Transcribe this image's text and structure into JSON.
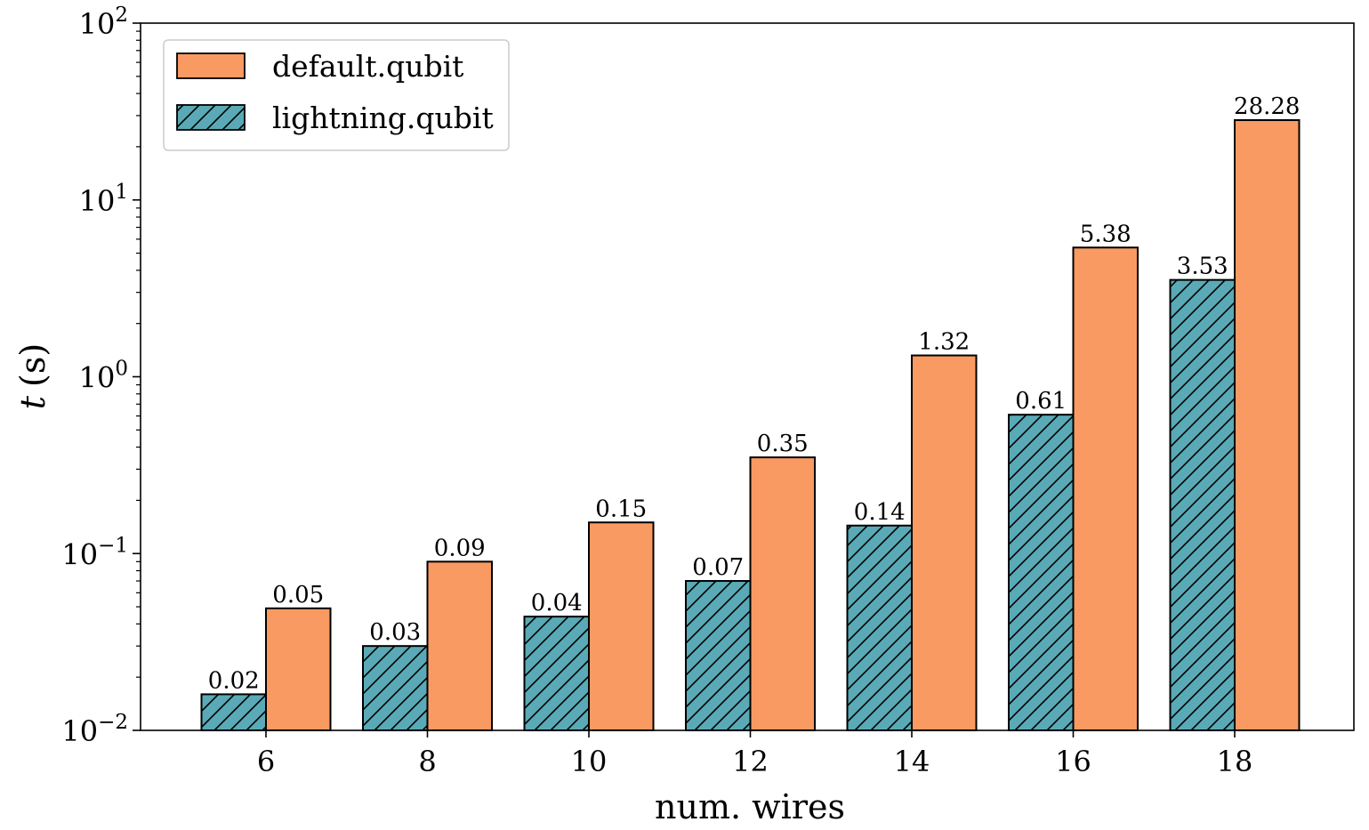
{
  "chart_data": {
    "type": "bar",
    "x_label": "num. wires",
    "y_label_var": "t",
    "y_label_unit": "(s)",
    "y_scale": "log",
    "ylim": [
      0.01,
      100
    ],
    "y_tick_base": "10",
    "y_tick_exponents": [
      "−2",
      "−1",
      "0",
      "1",
      "2"
    ],
    "categories": [
      "6",
      "8",
      "10",
      "12",
      "14",
      "16",
      "18"
    ],
    "series": [
      {
        "name": "lightning.qubit",
        "color": "#5aa9b6",
        "hatch": "diagonal",
        "values": [
          0.016,
          0.03,
          0.044,
          0.07,
          0.144,
          0.61,
          3.53
        ],
        "labels": [
          "0.02",
          "0.03",
          "0.04",
          "0.07",
          "0.14",
          "0.61",
          "3.53"
        ]
      },
      {
        "name": "default.qubit",
        "color": "#f89a62",
        "hatch": "none",
        "values": [
          0.049,
          0.09,
          0.15,
          0.35,
          1.32,
          5.38,
          28.28
        ],
        "labels": [
          "0.05",
          "0.09",
          "0.15",
          "0.35",
          "1.32",
          "5.38",
          "28.28"
        ]
      }
    ],
    "legend_position": "top-left",
    "legend_order": [
      "default.qubit",
      "lightning.qubit"
    ],
    "grid": false
  }
}
